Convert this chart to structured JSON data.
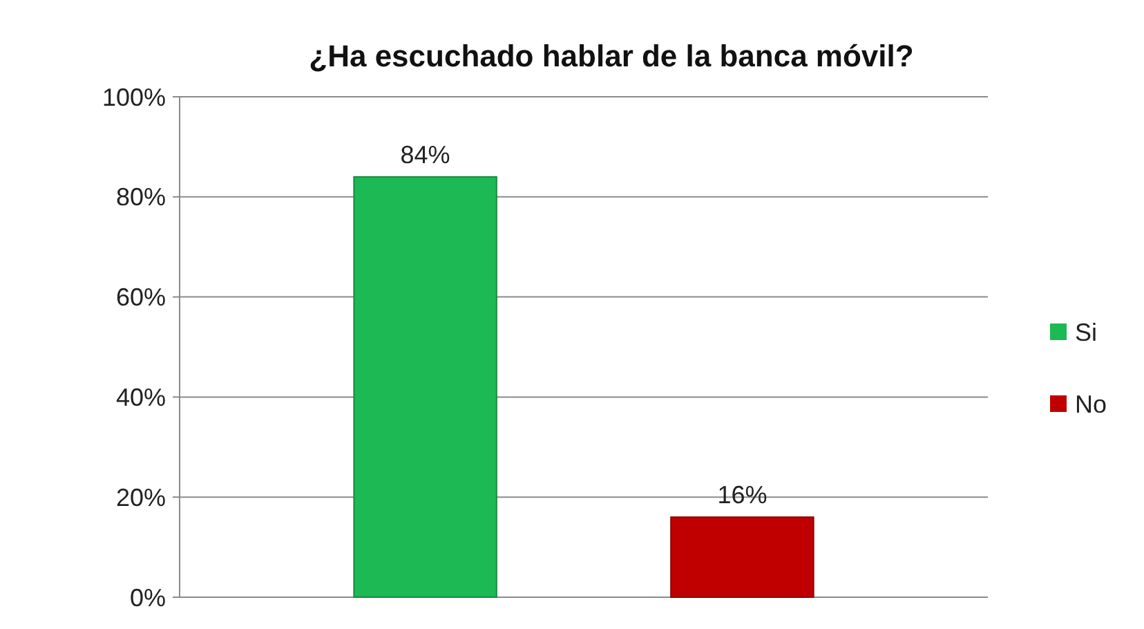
{
  "chart_data": {
    "type": "bar",
    "title": "¿Ha escuchado hablar de la banca móvil?",
    "categories": [
      null
    ],
    "series": [
      {
        "name": "Si",
        "color": "#1db954",
        "values": [
          84
        ],
        "value_labels": [
          "84%"
        ]
      },
      {
        "name": "No",
        "color": "#c00000",
        "values": [
          16
        ],
        "value_labels": [
          "16%"
        ]
      }
    ],
    "ylim": [
      0,
      100
    ],
    "yticks": [
      {
        "value": 0,
        "label": "0%"
      },
      {
        "value": 20,
        "label": "20%"
      },
      {
        "value": 40,
        "label": "40%"
      },
      {
        "value": 60,
        "label": "60%"
      },
      {
        "value": 80,
        "label": "80%"
      },
      {
        "value": 100,
        "label": "100%"
      }
    ],
    "grid": "y",
    "legend": "right"
  }
}
